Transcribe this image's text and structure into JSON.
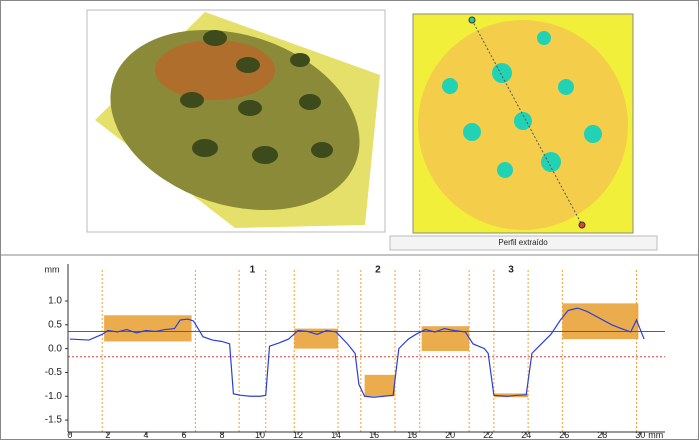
{
  "caption": "Perfil extraído",
  "chart_data": {
    "type": "line",
    "x_label": "mm",
    "y_label": "mm",
    "xlim": [
      -0.1,
      31.3
    ],
    "ylim": [
      -1.75,
      1.65
    ],
    "xticks": [
      0,
      2,
      4,
      6,
      8,
      10,
      12,
      14,
      16,
      18,
      20,
      22,
      24,
      26,
      28,
      30
    ],
    "yticks": [
      {
        "value": 1,
        "label": "1.0"
      },
      0.5,
      {
        "value": 0,
        "label": "0.0"
      },
      -0.5,
      {
        "value": -1,
        "label": "-1.0"
      },
      -1.5
    ],
    "series": [
      {
        "color": "#2b3fd8",
        "x": [
          0,
          1.0,
          1.7,
          2.0,
          2.5,
          3.0,
          3.5,
          4.0,
          4.5,
          5.0,
          5.5,
          5.8,
          6.2,
          6.5,
          7.0,
          7.5,
          8.0,
          8.4,
          8.6,
          9.0,
          9.5,
          10.0,
          10.3,
          10.5,
          11.0,
          11.5,
          12.0,
          12.5,
          13.0,
          13.5,
          14.0,
          14.6,
          15.0,
          15.2,
          15.5,
          16.0,
          16.5,
          17.0,
          17.3,
          17.8,
          18.2,
          18.7,
          19.2,
          19.7,
          20.2,
          20.8,
          21.2,
          21.8,
          22.0,
          22.3,
          23.0,
          23.5,
          24.0,
          24.3,
          24.8,
          25.3,
          25.8,
          26.2,
          26.7,
          27.2,
          27.8,
          28.5,
          29.0,
          29.5,
          29.8,
          30.2
        ],
        "values": [
          0.2,
          0.18,
          0.3,
          0.38,
          0.35,
          0.4,
          0.33,
          0.38,
          0.36,
          0.4,
          0.42,
          0.6,
          0.62,
          0.58,
          0.25,
          0.18,
          0.15,
          0.1,
          -0.95,
          -0.98,
          -1.0,
          -1.0,
          -0.98,
          0.05,
          0.12,
          0.2,
          0.38,
          0.36,
          0.3,
          0.38,
          0.35,
          0.1,
          -0.1,
          -0.75,
          -1.0,
          -1.02,
          -1.0,
          -0.98,
          0.0,
          0.2,
          0.3,
          0.4,
          0.35,
          0.42,
          0.38,
          0.35,
          0.1,
          0.0,
          -0.1,
          -0.98,
          -1.0,
          -0.98,
          -0.97,
          -0.1,
          0.1,
          0.3,
          0.6,
          0.8,
          0.85,
          0.78,
          0.65,
          0.5,
          0.42,
          0.35,
          0.6,
          0.2
        ]
      }
    ],
    "boxes": [
      {
        "x0": 1.8,
        "x1": 6.4,
        "y0": 0.15,
        "y1": 0.7
      },
      {
        "x0": 11.8,
        "x1": 14.1,
        "y0": 0.0,
        "y1": 0.42
      },
      {
        "x0": 15.5,
        "x1": 17.1,
        "y0": -1.0,
        "y1": -0.55
      },
      {
        "x0": 18.5,
        "x1": 21.0,
        "y0": -0.05,
        "y1": 0.47
      },
      {
        "x0": 22.3,
        "x1": 24.1,
        "y0": -1.02,
        "y1": -0.94
      },
      {
        "x0": 25.9,
        "x1": 29.9,
        "y0": 0.2,
        "y1": 0.95
      }
    ],
    "markers": [
      1.7,
      6.6,
      8.9,
      10.3,
      11.8,
      14.1,
      15.3,
      17.1,
      18.4,
      21.0,
      22.3,
      24.1,
      25.9,
      29.8
    ],
    "reference_line": 0.36,
    "reference_dashed": -0.17,
    "annotations": [
      {
        "x": 9.6,
        "text": "1"
      },
      {
        "x": 16.2,
        "text": "2"
      },
      {
        "x": 23.2,
        "text": "3"
      }
    ]
  }
}
